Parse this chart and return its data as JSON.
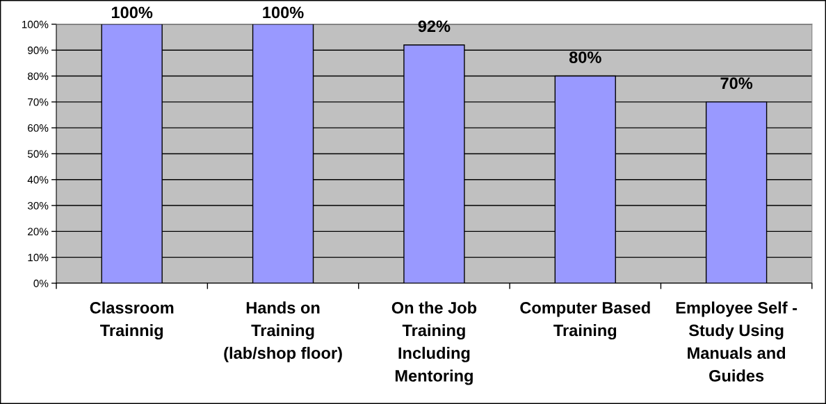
{
  "chart_data": {
    "type": "bar",
    "categories": [
      "Classroom\nTrainnig",
      "Hands on\nTraining\n(lab/shop floor)",
      "On the Job\nTraining\nIncluding\nMentoring",
      "Computer Based\nTraining",
      "Employee Self -\nStudy Using\nManuals and\nGuides"
    ],
    "values": [
      100,
      100,
      92,
      80,
      70
    ],
    "value_labels": [
      "100%",
      "100%",
      "92%",
      "80%",
      "70%"
    ],
    "color": "#9999ff",
    "ylim": [
      0,
      100
    ],
    "yticks": [
      {
        "value": 0,
        "label": "0%"
      },
      {
        "value": 10,
        "label": "10%"
      },
      {
        "value": 20,
        "label": "20%"
      },
      {
        "value": 30,
        "label": "30%"
      },
      {
        "value": 40,
        "label": "40%"
      },
      {
        "value": 50,
        "label": "50%"
      },
      {
        "value": 60,
        "label": "60%"
      },
      {
        "value": 70,
        "label": "70%"
      },
      {
        "value": 80,
        "label": "80%"
      },
      {
        "value": 90,
        "label": "90%"
      },
      {
        "value": 100,
        "label": "100%"
      }
    ],
    "grid": "y"
  }
}
